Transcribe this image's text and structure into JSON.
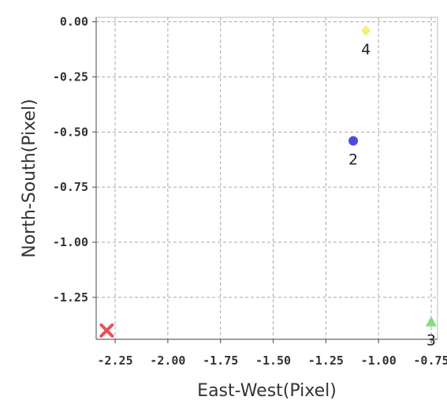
{
  "chart_data": {
    "type": "scatter",
    "title": "",
    "xlabel": "East-West(Pixel)",
    "ylabel": "North-South(Pixel)",
    "xlim": [
      -2.34,
      -0.72
    ],
    "ylim": [
      -1.44,
      0.02
    ],
    "xticks": [
      -2.25,
      -2.0,
      -1.75,
      -1.5,
      -1.25,
      -1.0,
      -0.75
    ],
    "xtick_labels": [
      "-2.25",
      "-2.00",
      "-1.75",
      "-1.50",
      "-1.25",
      "-1.00",
      "-0.75"
    ],
    "yticks": [
      0.0,
      -0.25,
      -0.5,
      -0.75,
      -1.0,
      -1.25
    ],
    "ytick_labels": [
      "0.00",
      "-0.25",
      "-0.50",
      "-0.75",
      "-1.00",
      "-1.25"
    ],
    "grid": true,
    "points": [
      {
        "label": "",
        "x": -2.29,
        "y": -1.4,
        "marker": "x",
        "color": "#e8505b"
      },
      {
        "label": "2",
        "x": -1.12,
        "y": -0.54,
        "marker": "circle",
        "color": "#4a4ee0"
      },
      {
        "label": "3",
        "x": -0.75,
        "y": -1.36,
        "marker": "triangle",
        "color": "#7fe07f"
      },
      {
        "label": "4",
        "x": -1.06,
        "y": -0.04,
        "marker": "diamond",
        "color": "#f2ef7a"
      }
    ]
  }
}
